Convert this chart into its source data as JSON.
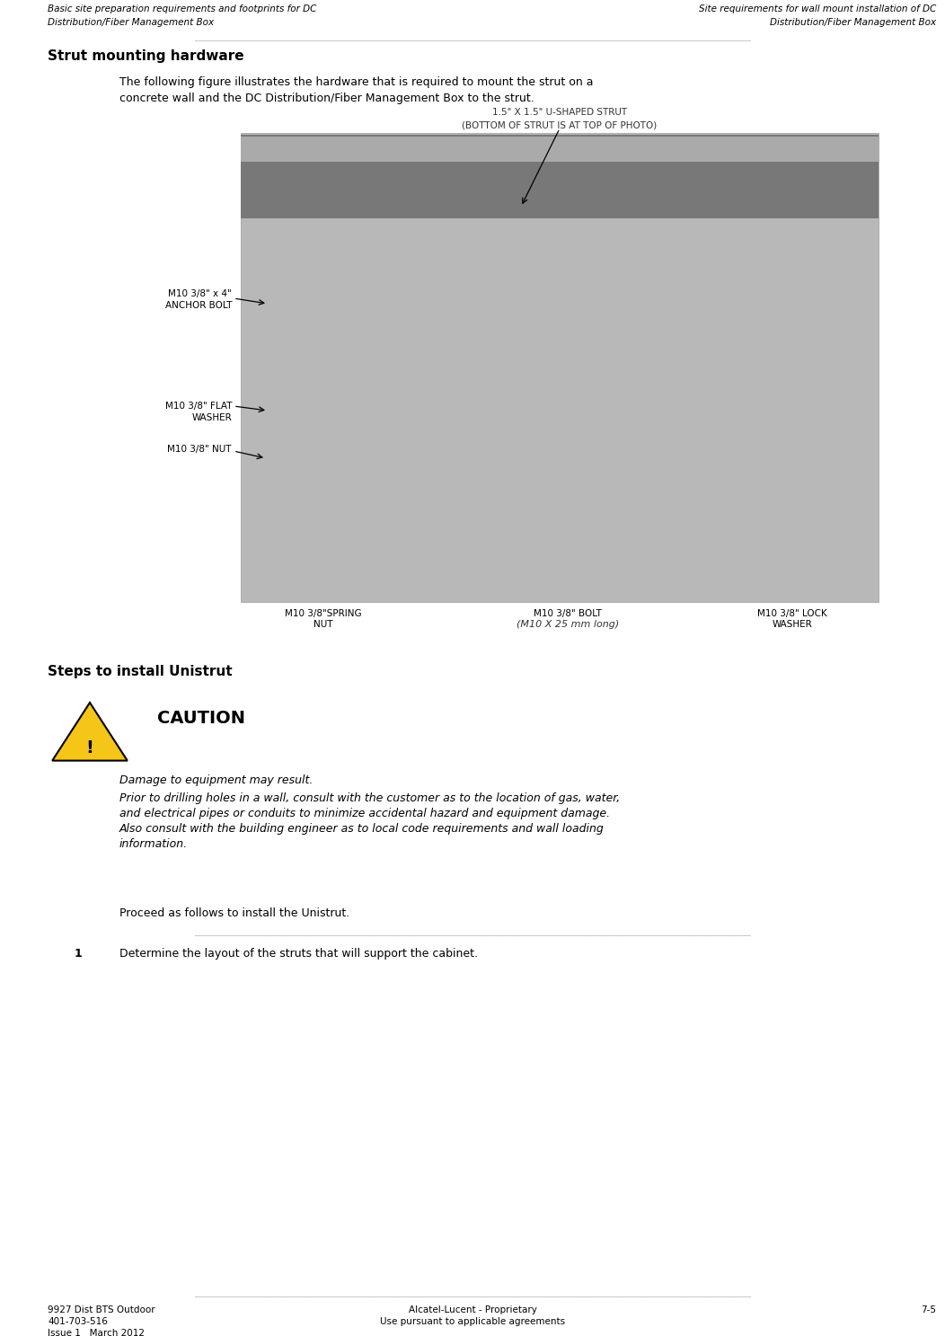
{
  "bg_color": "#ffffff",
  "page_width": 10.52,
  "page_height": 14.87,
  "dpi": 100,
  "header_left_line1": "Basic site preparation requirements and footprints for DC",
  "header_left_line2": "Distribution/Fiber Management Box",
  "header_right_line1": "Site requirements for wall mount installation of DC",
  "header_right_line2": "Distribution/Fiber Management Box",
  "section_title": "Strut mounting hardware",
  "intro_line1": "The following figure illustrates the hardware that is required to mount the strut on a",
  "intro_line2": "concrete wall and the DC Distribution/Fiber Management Box to the strut.",
  "steps_title": "Steps to install Unistrut",
  "caution_title": "CAUTION",
  "caution_italic1": "Damage to equipment may result.",
  "caution_italic2_line1": "Prior to drilling holes in a wall, consult with the customer as to the location of gas, water,",
  "caution_italic2_line2": "and electrical pipes or conduits to minimize accidental hazard and equipment damage.",
  "caution_italic2_line3": "Also consult with the building engineer as to local code requirements and wall loading",
  "caution_italic2_line4": "information.",
  "proceed_text": "Proceed as follows to install the Unistrut.",
  "step1_num": "1",
  "step1_text": "Determine the layout of the struts that will support the cabinet.",
  "footer_left_line1": "9927 Dist BTS Outdoor",
  "footer_left_line2": "401-703-516",
  "footer_left_line3": "Issue 1   March 2012",
  "footer_center_line1": "Alcatel-Lucent - Proprietary",
  "footer_center_line2": "Use pursuant to applicable agreements",
  "footer_right": "7-5",
  "img_label_top_line1": "1.5\" X 1.5\" U-SHAPED STRUT",
  "img_label_top_line2": "(BOTTOM OF STRUT IS AT TOP OF PHOTO)",
  "img_label_anchor_line1": "M10 3/8\" x 4\"",
  "img_label_anchor_line2": "ANCHOR BOLT",
  "img_label_flat_line1": "M10 3/8\" FLAT",
  "img_label_flat_line2": "WASHER",
  "img_label_nut": "M10 3/8\" NUT",
  "img_label_spring_line1": "M10 3/8\"SPRING",
  "img_label_spring_line2": "NUT",
  "img_label_bolt_line1": "M10 3/8\" BOLT",
  "img_label_bolt_line2": "(M10 X 25 mm long)",
  "img_label_lock_line1": "M10 3/8\" LOCK",
  "img_label_lock_line2": "WASHER",
  "font_family": "DejaVu Sans"
}
